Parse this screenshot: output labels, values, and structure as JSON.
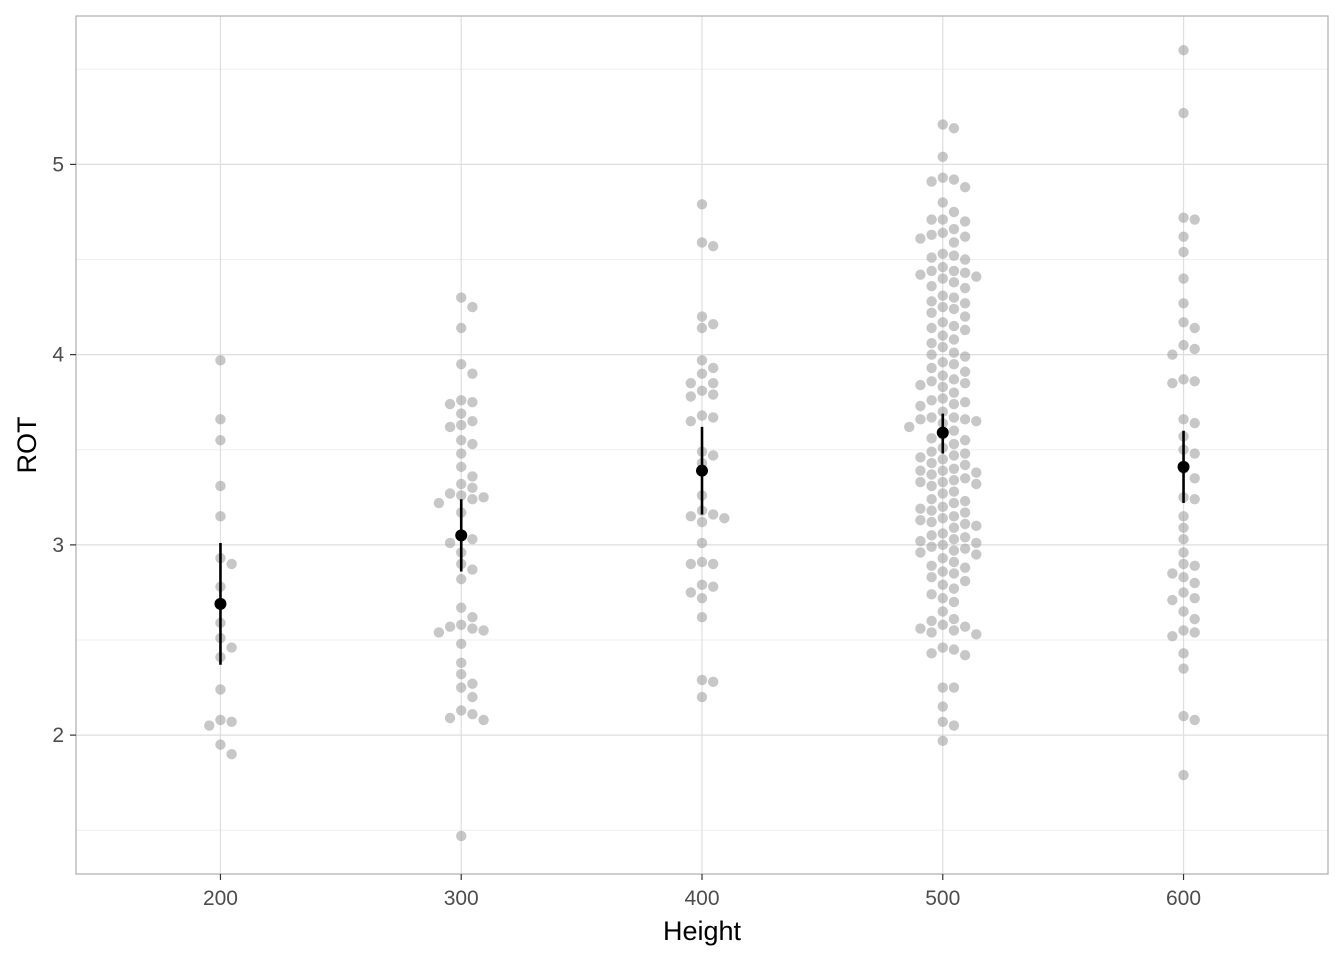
{
  "chart_data": {
    "type": "scatter",
    "title": "",
    "xlabel": "Height",
    "ylabel": "ROT",
    "xlim": [
      140,
      660
    ],
    "ylim": [
      1.27,
      5.78
    ],
    "x_ticks": [
      200,
      300,
      400,
      500,
      600
    ],
    "x_tick_labels": [
      "200",
      "300",
      "400",
      "500",
      "600"
    ],
    "y_ticks": [
      2,
      3,
      4,
      5
    ],
    "y_tick_labels": [
      "2",
      "3",
      "4",
      "5"
    ],
    "grid": true,
    "legend": "none",
    "colors": {
      "points": "#999999",
      "summary": "#000000",
      "grid_major": "#dedede",
      "grid_minor": "#efefef",
      "panel_border": "#b3b3b3"
    },
    "groups": [
      {
        "x": 200,
        "points": [
          3.97,
          3.66,
          3.55,
          3.31,
          3.15,
          2.93,
          2.9,
          2.78,
          2.69,
          2.59,
          2.51,
          2.46,
          2.41,
          2.24,
          2.08,
          2.07,
          2.05,
          1.95,
          1.9
        ],
        "mean": 2.69,
        "ci_low": 2.37,
        "ci_high": 3.01
      },
      {
        "x": 300,
        "points": [
          4.3,
          4.25,
          4.14,
          3.95,
          3.9,
          3.76,
          3.75,
          3.74,
          3.69,
          3.65,
          3.63,
          3.62,
          3.55,
          3.53,
          3.48,
          3.41,
          3.36,
          3.32,
          3.3,
          3.27,
          3.26,
          3.25,
          3.24,
          3.22,
          3.17,
          3.05,
          3.03,
          3.01,
          2.96,
          2.9,
          2.87,
          2.82,
          2.67,
          2.62,
          2.58,
          2.57,
          2.56,
          2.55,
          2.54,
          2.48,
          2.38,
          2.32,
          2.27,
          2.25,
          2.2,
          2.13,
          2.11,
          2.09,
          2.08,
          1.47
        ],
        "mean": 3.05,
        "ci_low": 2.86,
        "ci_high": 3.24
      },
      {
        "x": 400,
        "points": [
          4.79,
          4.59,
          4.57,
          4.2,
          4.16,
          4.14,
          3.97,
          3.93,
          3.9,
          3.85,
          3.85,
          3.81,
          3.79,
          3.78,
          3.68,
          3.67,
          3.65,
          3.49,
          3.47,
          3.43,
          3.26,
          3.18,
          3.16,
          3.15,
          3.14,
          3.12,
          3.01,
          2.91,
          2.9,
          2.9,
          2.79,
          2.78,
          2.75,
          2.72,
          2.62,
          2.29,
          2.28,
          2.2
        ],
        "mean": 3.39,
        "ci_low": 3.16,
        "ci_high": 3.62
      },
      {
        "x": 500,
        "points": [
          5.21,
          5.19,
          5.04,
          4.93,
          4.92,
          4.91,
          4.88,
          4.8,
          4.75,
          4.71,
          4.71,
          4.7,
          4.66,
          4.64,
          4.63,
          4.62,
          4.61,
          4.59,
          4.53,
          4.52,
          4.51,
          4.5,
          4.46,
          4.44,
          4.44,
          4.43,
          4.42,
          4.41,
          4.4,
          4.38,
          4.36,
          4.35,
          4.31,
          4.3,
          4.28,
          4.27,
          4.25,
          4.24,
          4.22,
          4.2,
          4.17,
          4.15,
          4.14,
          4.13,
          4.1,
          4.08,
          4.06,
          4.04,
          4.01,
          4.0,
          3.99,
          3.96,
          3.95,
          3.93,
          3.91,
          3.89,
          3.87,
          3.86,
          3.85,
          3.84,
          3.83,
          3.8,
          3.77,
          3.76,
          3.75,
          3.74,
          3.73,
          3.7,
          3.67,
          3.67,
          3.66,
          3.66,
          3.65,
          3.64,
          3.62,
          3.6,
          3.58,
          3.56,
          3.55,
          3.53,
          3.51,
          3.49,
          3.48,
          3.47,
          3.46,
          3.45,
          3.43,
          3.42,
          3.4,
          3.39,
          3.39,
          3.38,
          3.37,
          3.35,
          3.34,
          3.33,
          3.33,
          3.32,
          3.31,
          3.28,
          3.27,
          3.24,
          3.23,
          3.22,
          3.2,
          3.19,
          3.18,
          3.17,
          3.15,
          3.14,
          3.13,
          3.12,
          3.11,
          3.1,
          3.09,
          3.06,
          3.05,
          3.04,
          3.03,
          3.02,
          3.01,
          3.0,
          2.99,
          2.98,
          2.97,
          2.96,
          2.95,
          2.93,
          2.91,
          2.89,
          2.88,
          2.86,
          2.85,
          2.83,
          2.81,
          2.79,
          2.77,
          2.74,
          2.72,
          2.7,
          2.65,
          2.61,
          2.6,
          2.58,
          2.57,
          2.56,
          2.55,
          2.54,
          2.53,
          2.46,
          2.45,
          2.43,
          2.42,
          2.25,
          2.25,
          2.15,
          2.07,
          2.05,
          1.97
        ],
        "mean": 3.59,
        "ci_low": 3.48,
        "ci_high": 3.69
      },
      {
        "x": 600,
        "points": [
          5.6,
          5.27,
          4.72,
          4.71,
          4.62,
          4.54,
          4.4,
          4.27,
          4.17,
          4.14,
          4.05,
          4.03,
          4.0,
          3.87,
          3.86,
          3.85,
          3.66,
          3.64,
          3.57,
          3.5,
          3.48,
          3.4,
          3.35,
          3.25,
          3.24,
          3.15,
          3.09,
          3.03,
          2.96,
          2.9,
          2.89,
          2.85,
          2.83,
          2.8,
          2.75,
          2.72,
          2.71,
          2.65,
          2.61,
          2.55,
          2.54,
          2.52,
          2.43,
          2.35,
          2.1,
          2.08,
          1.79
        ],
        "mean": 3.41,
        "ci_low": 3.22,
        "ci_high": 3.6
      }
    ]
  }
}
